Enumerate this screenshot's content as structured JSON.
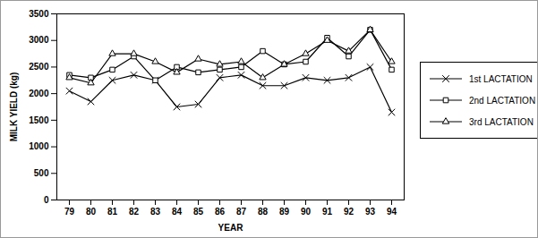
{
  "chart_data": {
    "type": "line",
    "x_label": "YEAR",
    "y_label": "MILK YIELD (kg)",
    "categories": [
      "79",
      "80",
      "81",
      "82",
      "83",
      "84",
      "85",
      "86",
      "87",
      "88",
      "89",
      "90",
      "91",
      "92",
      "93",
      "94"
    ],
    "series": [
      {
        "name": "1st LACTATION",
        "color": "#000000",
        "marker": "x",
        "line_style": "solid",
        "values": [
          2050,
          1850,
          2250,
          2350,
          2250,
          1750,
          1800,
          2300,
          2350,
          2150,
          2150,
          2300,
          2250,
          2300,
          2500,
          1650
        ]
      },
      {
        "name": "2nd LACTATION",
        "color": "#000000",
        "marker": "square",
        "line_style": "solid",
        "values": [
          2350,
          2300,
          2450,
          2700,
          2250,
          2500,
          2400,
          2450,
          2500,
          2800,
          2550,
          2600,
          3050,
          2700,
          3200,
          2450
        ]
      },
      {
        "name": "3rd LACTATION",
        "color": "#000000",
        "marker": "triangle",
        "line_style": "solid",
        "values": [
          2300,
          2200,
          2750,
          2750,
          2600,
          2400,
          2650,
          2550,
          2600,
          2300,
          2550,
          2750,
          3000,
          2800,
          3200,
          2600
        ]
      }
    ],
    "ylim": [
      0,
      3500
    ],
    "yticks": [
      0,
      500,
      1000,
      1500,
      2000,
      2500,
      3000,
      3500
    ],
    "grid": false,
    "legend": "right"
  }
}
